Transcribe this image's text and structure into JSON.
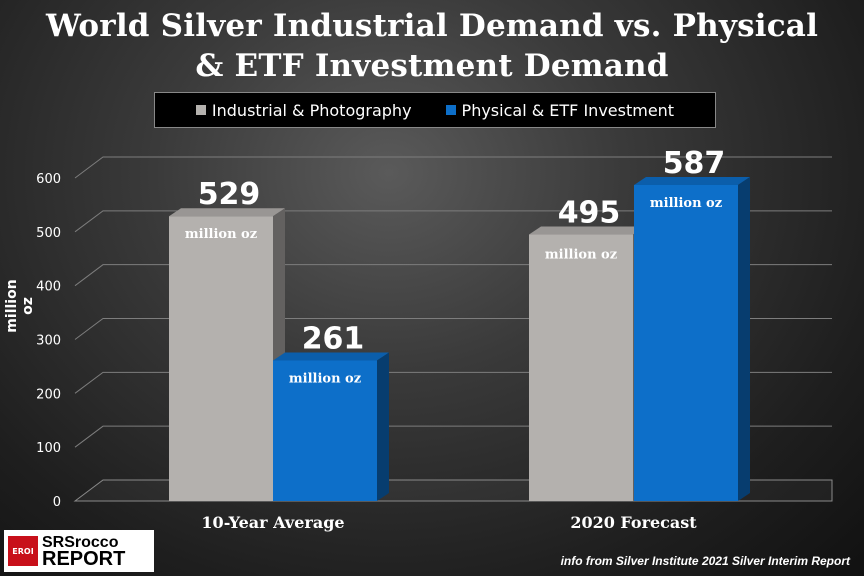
{
  "header": {
    "title_line1": "World Silver Industrial Demand vs. Physical",
    "title_line2": "& ETF Investment Demand"
  },
  "colors": {
    "industrial": "#b4b1ae",
    "investment": "#0d6fc9"
  },
  "chart_data": {
    "type": "bar",
    "categories": [
      "10-Year Average",
      "2020 Forecast"
    ],
    "series": [
      {
        "name": "Industrial & Photography",
        "values": [
          529,
          495
        ]
      },
      {
        "name": "Physical & ETF Investment",
        "values": [
          261,
          587
        ]
      }
    ],
    "data_label_unit": "million oz",
    "ylabel": "million oz",
    "ylim": [
      0,
      600
    ],
    "yticks": [
      0,
      100,
      200,
      300,
      400,
      500,
      600
    ],
    "grid": true,
    "legend": "top-center"
  },
  "footer": {
    "source": "info from Silver Institute 2021 Silver Interim Report",
    "logo_line1": "SRSrocco",
    "logo_line2": "REPORT",
    "logo_badge": "EROI"
  }
}
